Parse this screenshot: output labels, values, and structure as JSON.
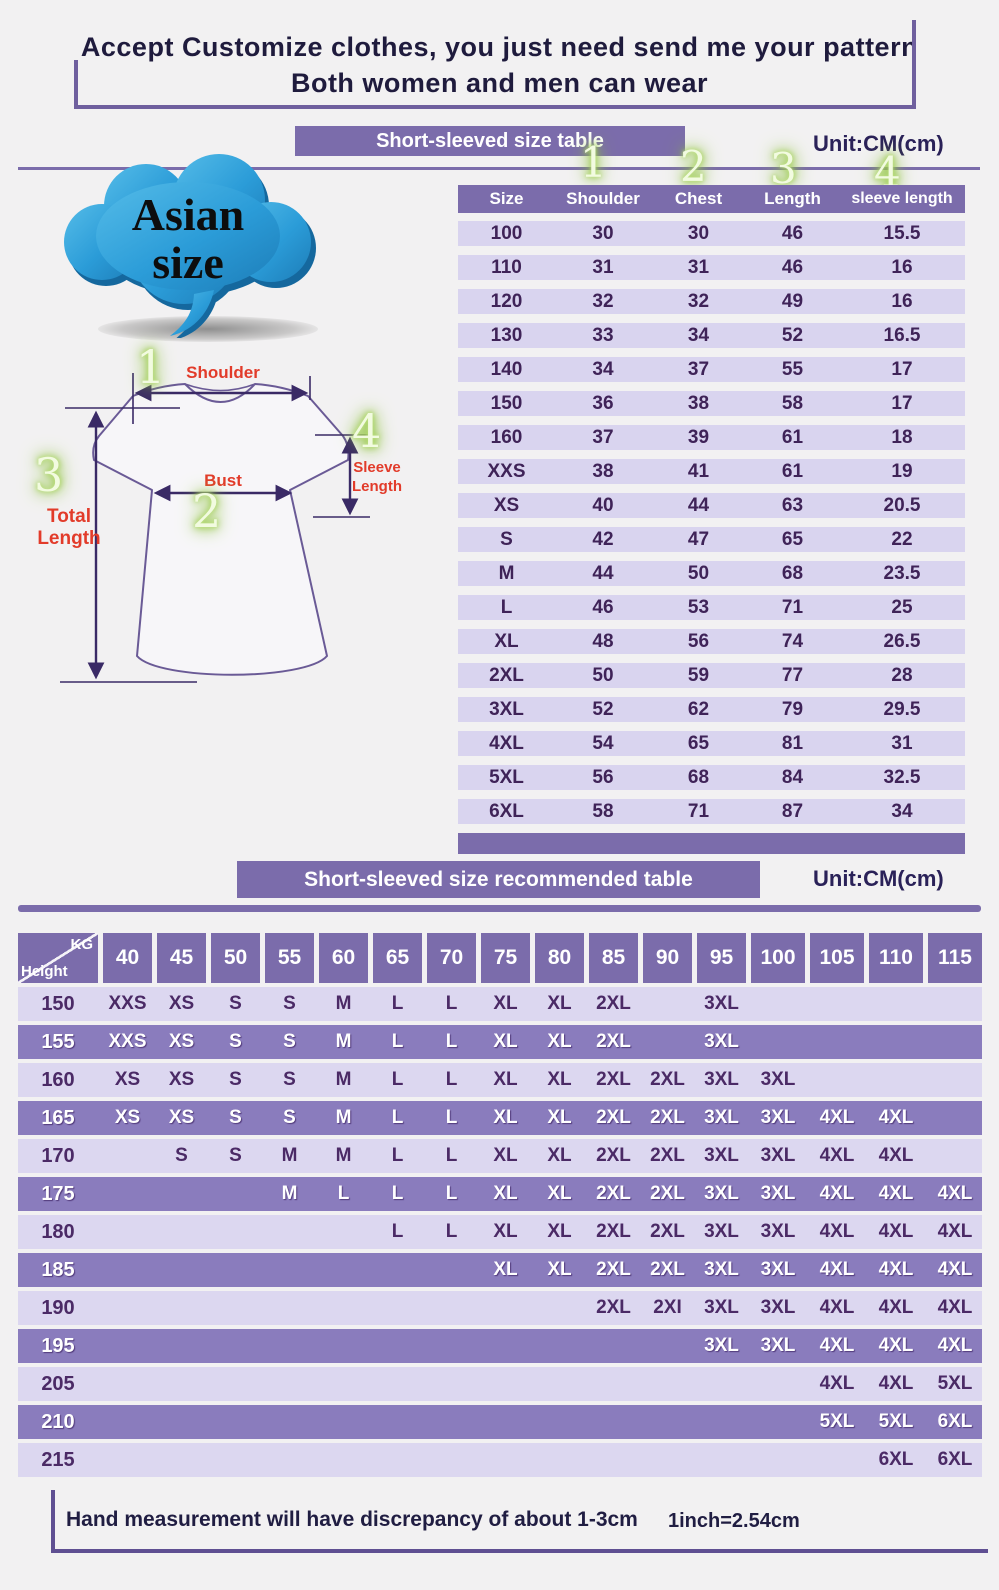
{
  "title": {
    "line1": "Accept Customize clothes, you just need send me your pattern",
    "line2": "Both women and men can wear"
  },
  "section1": {
    "bar_title": "Short-sleeved size  table",
    "unit": "Unit:CM(cm)",
    "cloud": {
      "line1": "Asian",
      "line2": "size"
    },
    "markers": [
      "1",
      "2",
      "3",
      "4"
    ],
    "labels": {
      "shoulder": "Shoulder",
      "bust": "Bust",
      "total_1": "Total",
      "total_2": "Length",
      "sleeve_1": "Sleeve",
      "sleeve_2": "Length"
    }
  },
  "size_table": {
    "columns": [
      "Size",
      "Shoulder",
      "Chest",
      "Length",
      "sleeve length"
    ],
    "rows": [
      [
        "100",
        "30",
        "30",
        "46",
        "15.5"
      ],
      [
        "110",
        "31",
        "31",
        "46",
        "16"
      ],
      [
        "120",
        "32",
        "32",
        "49",
        "16"
      ],
      [
        "130",
        "33",
        "34",
        "52",
        "16.5"
      ],
      [
        "140",
        "34",
        "37",
        "55",
        "17"
      ],
      [
        "150",
        "36",
        "38",
        "58",
        "17"
      ],
      [
        "160",
        "37",
        "39",
        "61",
        "18"
      ],
      [
        "XXS",
        "38",
        "41",
        "61",
        "19"
      ],
      [
        "XS",
        "40",
        "44",
        "63",
        "20.5"
      ],
      [
        "S",
        "42",
        "47",
        "65",
        "22"
      ],
      [
        "M",
        "44",
        "50",
        "68",
        "23.5"
      ],
      [
        "L",
        "46",
        "53",
        "71",
        "25"
      ],
      [
        "XL",
        "48",
        "56",
        "74",
        "26.5"
      ],
      [
        "2XL",
        "50",
        "59",
        "77",
        "28"
      ],
      [
        "3XL",
        "52",
        "62",
        "79",
        "29.5"
      ],
      [
        "4XL",
        "54",
        "65",
        "81",
        "31"
      ],
      [
        "5XL",
        "56",
        "68",
        "84",
        "32.5"
      ],
      [
        "6XL",
        "58",
        "71",
        "87",
        "34"
      ]
    ]
  },
  "section2": {
    "bar_title": "Short-sleeved size recommended table",
    "unit": "Unit:CM(cm)",
    "corner_top": "KG",
    "corner_bottom": "Height"
  },
  "recommend_table": {
    "weights": [
      "40",
      "45",
      "50",
      "55",
      "60",
      "65",
      "70",
      "75",
      "80",
      "85",
      "90",
      "95",
      "100",
      "105",
      "110",
      "115"
    ],
    "rows": [
      {
        "height": "150",
        "cells": [
          "XXS",
          "XS",
          "S",
          "S",
          "M",
          "L",
          "L",
          "XL",
          "XL",
          "2XL",
          "",
          "3XL",
          "",
          "",
          "",
          ""
        ]
      },
      {
        "height": "155",
        "cells": [
          "XXS",
          "XS",
          "S",
          "S",
          "M",
          "L",
          "L",
          "XL",
          "XL",
          "2XL",
          "",
          "3XL",
          "",
          "",
          "",
          ""
        ]
      },
      {
        "height": "160",
        "cells": [
          "XS",
          "XS",
          "S",
          "S",
          "M",
          "L",
          "L",
          "XL",
          "XL",
          "2XL",
          "2XL",
          "3XL",
          "3XL",
          "",
          "",
          ""
        ]
      },
      {
        "height": "165",
        "cells": [
          "XS",
          "XS",
          "S",
          "S",
          "M",
          "L",
          "L",
          "XL",
          "XL",
          "2XL",
          "2XL",
          "3XL",
          "3XL",
          "4XL",
          "4XL",
          ""
        ]
      },
      {
        "height": "170",
        "cells": [
          "",
          "S",
          "S",
          "M",
          "M",
          "L",
          "L",
          "XL",
          "XL",
          "2XL",
          "2XL",
          "3XL",
          "3XL",
          "4XL",
          "4XL",
          ""
        ]
      },
      {
        "height": "175",
        "cells": [
          "",
          "",
          "",
          "M",
          "L",
          "L",
          "L",
          "XL",
          "XL",
          "2XL",
          "2XL",
          "3XL",
          "3XL",
          "4XL",
          "4XL",
          "4XL"
        ]
      },
      {
        "height": "180",
        "cells": [
          "",
          "",
          "",
          "",
          "",
          "L",
          "L",
          "XL",
          "XL",
          "2XL",
          "2XL",
          "3XL",
          "3XL",
          "4XL",
          "4XL",
          "4XL"
        ]
      },
      {
        "height": "185",
        "cells": [
          "",
          "",
          "",
          "",
          "",
          "",
          "",
          "XL",
          "XL",
          "2XL",
          "2XL",
          "3XL",
          "3XL",
          "4XL",
          "4XL",
          "4XL"
        ]
      },
      {
        "height": "190",
        "cells": [
          "",
          "",
          "",
          "",
          "",
          "",
          "",
          "",
          "",
          "2XL",
          "2XI",
          "3XL",
          "3XL",
          "4XL",
          "4XL",
          "4XL"
        ]
      },
      {
        "height": "195",
        "cells": [
          "",
          "",
          "",
          "",
          "",
          "",
          "",
          "",
          "",
          "",
          "",
          "3XL",
          "3XL",
          "4XL",
          "4XL",
          "4XL"
        ]
      },
      {
        "height": "205",
        "cells": [
          "",
          "",
          "",
          "",
          "",
          "",
          "",
          "",
          "",
          "",
          "",
          "",
          "",
          "4XL",
          "4XL",
          "5XL"
        ]
      },
      {
        "height": "210",
        "cells": [
          "",
          "",
          "",
          "",
          "",
          "",
          "",
          "",
          "",
          "",
          "",
          "",
          "",
          "5XL",
          "5XL",
          "6XL"
        ]
      },
      {
        "height": "215",
        "cells": [
          "",
          "",
          "",
          "",
          "",
          "",
          "",
          "",
          "",
          "",
          "",
          "",
          "",
          "",
          "6XL",
          "6XL"
        ]
      }
    ]
  },
  "footer": {
    "note": "Hand measurement will have discrepancy of about  1-3cm",
    "conversion": "1inch=2.54cm"
  },
  "colors": {
    "purple_bar": "#7b6cab",
    "row_light": "#dcd7f0",
    "row_dark": "#8a7cbd",
    "table1_row": "#d9d4ef",
    "text_dark_purple": "#3f2358",
    "title_navy": "#1f1b3d",
    "accent_red": "#e23b2a",
    "marker_green_glow": "#8fc43c",
    "cloud_blue": "#2b9cd8",
    "background": "#f2f1f2"
  }
}
